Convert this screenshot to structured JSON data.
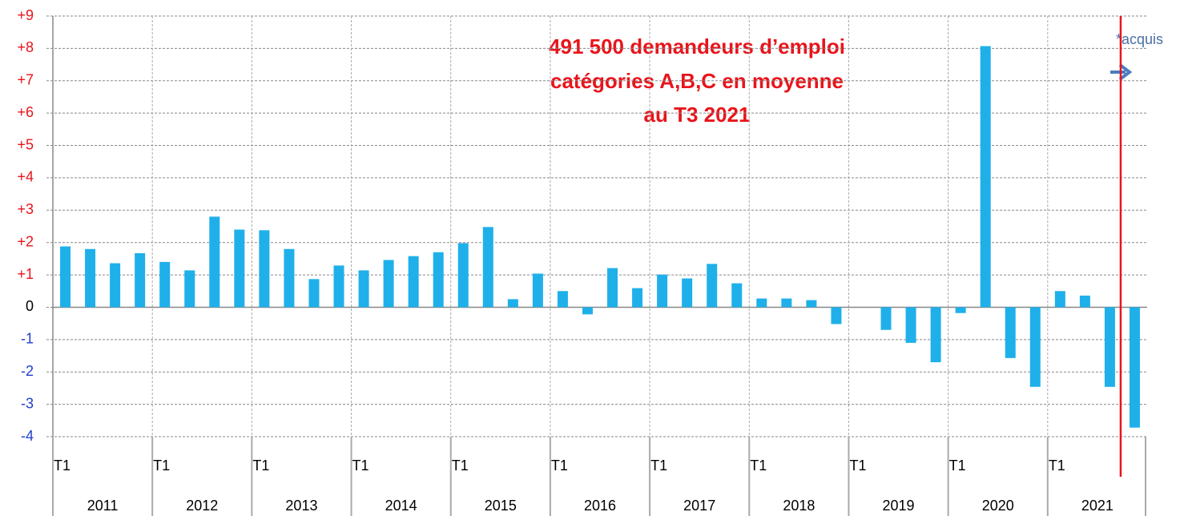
{
  "chart_data": {
    "type": "bar",
    "annotation": [
      "491 500 demandeurs d’emploi",
      "catégories A,B,C en moyenne",
      "au T3 2021"
    ],
    "note": "*acquis",
    "categories": [
      "T1",
      null,
      null,
      null,
      "T1",
      null,
      null,
      null,
      "T1",
      null,
      null,
      null,
      "T1",
      null,
      null,
      null,
      "T1",
      null,
      null,
      null,
      "T1",
      null,
      null,
      null,
      "T1",
      null,
      null,
      null,
      "T1",
      null,
      null,
      null,
      "T1",
      null,
      null,
      null,
      "T1",
      null,
      null,
      null,
      "T1",
      null,
      null,
      null
    ],
    "groups": [
      "2011",
      "2012",
      "2013",
      "2014",
      "2015",
      "2016",
      "2017",
      "2018",
      "2019",
      "2020",
      "2021"
    ],
    "values": [
      1.88,
      1.8,
      1.36,
      1.67,
      1.4,
      1.14,
      2.8,
      2.4,
      2.38,
      1.8,
      0.87,
      1.29,
      1.14,
      1.46,
      1.58,
      1.7,
      1.98,
      2.48,
      0.25,
      1.04,
      0.5,
      -0.22,
      1.21,
      0.59,
      1.01,
      0.89,
      1.34,
      0.74,
      0.27,
      0.27,
      0.22,
      -0.52,
      0,
      -0.7,
      -1.1,
      -1.7,
      -0.18,
      8.07,
      -1.57,
      -2.46,
      0.5,
      0.36,
      -2.46,
      -3.72
    ],
    "color": "#1fb0ea",
    "ylim": [
      -4,
      9
    ],
    "yticks": [
      -4,
      -3,
      -2,
      -1,
      0,
      {
        "value": 1,
        "label": "+1"
      },
      {
        "value": 2,
        "label": "+2"
      },
      {
        "value": 3,
        "label": "+3"
      },
      {
        "value": 4,
        "label": "+4"
      },
      {
        "value": 5,
        "label": "+5"
      },
      {
        "value": 6,
        "label": "+6"
      },
      {
        "value": 7,
        "label": "+7"
      },
      {
        "value": 8,
        "label": "+8"
      },
      {
        "value": 9,
        "label": "+9"
      }
    ],
    "grid": true
  }
}
